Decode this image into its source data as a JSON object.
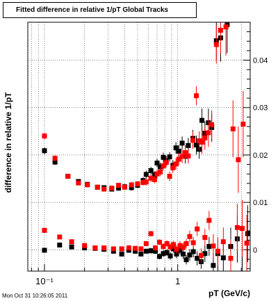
{
  "chart_data": {
    "type": "scatter",
    "title": "Fitted difference in relative 1/pT  Global Tracks",
    "xlabel": "pT (GeV/c)",
    "ylabel": "difference in relative 1/pT",
    "x_scale": "log",
    "xlim": [
      0.075,
      3.5
    ],
    "ylim": [
      -0.0045,
      0.048
    ],
    "x_ticks": [
      {
        "value": 0.1,
        "label": "10⁻¹"
      },
      {
        "value": 1,
        "label": "1"
      }
    ],
    "y_ticks": [
      {
        "value": 0,
        "label": "0"
      },
      {
        "value": 0.01,
        "label": "0.01"
      },
      {
        "value": 0.02,
        "label": "0.02"
      },
      {
        "value": 0.03,
        "label": "0.03"
      },
      {
        "value": 0.04,
        "label": "0.04"
      }
    ],
    "grid": true,
    "colors": {
      "black": "#000000",
      "red": "#ff0000"
    },
    "series": [
      {
        "color": "#000000",
        "marker": "square",
        "points": [
          [
            0.1,
            0.0209,
            0.0007
          ],
          [
            0.12,
            0.0185,
            0.0006
          ],
          [
            0.15,
            0.0155,
            0.0005
          ],
          [
            0.18,
            0.0144,
            0.0005
          ],
          [
            0.21,
            0.0138,
            0.0005
          ],
          [
            0.25,
            0.0132,
            0.0005
          ],
          [
            0.28,
            0.0131,
            0.0005
          ],
          [
            0.32,
            0.0128,
            0.0005
          ],
          [
            0.36,
            0.013,
            0.0005
          ],
          [
            0.4,
            0.0133,
            0.0006
          ],
          [
            0.45,
            0.0131,
            0.0006
          ],
          [
            0.5,
            0.0136,
            0.0006
          ],
          [
            0.55,
            0.0146,
            0.0007
          ],
          [
            0.58,
            0.0159,
            0.0008
          ],
          [
            0.63,
            0.0167,
            0.0008
          ],
          [
            0.67,
            0.0158,
            0.0008
          ],
          [
            0.7,
            0.0183,
            0.0009
          ],
          [
            0.74,
            0.0175,
            0.0009
          ],
          [
            0.78,
            0.0195,
            0.001
          ],
          [
            0.82,
            0.0188,
            0.001
          ],
          [
            0.87,
            0.0196,
            0.001
          ],
          [
            0.92,
            0.0178,
            0.0011
          ],
          [
            0.97,
            0.0215,
            0.0012
          ],
          [
            1.02,
            0.0208,
            0.0013
          ],
          [
            1.08,
            0.0225,
            0.0014
          ],
          [
            1.14,
            0.0197,
            0.0015
          ],
          [
            1.2,
            0.022,
            0.0016
          ],
          [
            1.3,
            0.0235,
            0.0018
          ],
          [
            1.38,
            0.0221,
            0.002
          ],
          [
            1.45,
            0.0212,
            0.002
          ],
          [
            1.52,
            0.0273,
            0.0025
          ],
          [
            1.6,
            0.0246,
            0.0025
          ],
          [
            1.7,
            0.0268,
            0.003
          ],
          [
            1.8,
            0.0258,
            0.003
          ],
          [
            1.95,
            0.0441,
            0.004
          ],
          [
            2.1,
            0.0447,
            0.005
          ],
          [
            2.35,
            0.0475,
            0.006
          ],
          [
            0.1,
            -0.0001,
            0.0004
          ],
          [
            0.13,
            0.001,
            0.0004
          ],
          [
            0.16,
            0.0006,
            0.0004
          ],
          [
            0.2,
            0.0004,
            0.0004
          ],
          [
            0.24,
            0.0003,
            0.0004
          ],
          [
            0.28,
            0.0001,
            0.0004
          ],
          [
            0.33,
            -0.0003,
            0.0004
          ],
          [
            0.38,
            -0.0009,
            0.0004
          ],
          [
            0.43,
            -0.0001,
            0.0005
          ],
          [
            0.48,
            -0.0003,
            0.0005
          ],
          [
            0.53,
            -0.0009,
            0.0005
          ],
          [
            0.58,
            -0.0003,
            0.0005
          ],
          [
            0.63,
            -0.0002,
            0.0006
          ],
          [
            0.68,
            -0.0003,
            0.0006
          ],
          [
            0.73,
            -0.0014,
            0.0006
          ],
          [
            0.78,
            -0.0008,
            0.0007
          ],
          [
            0.83,
            -0.0006,
            0.0007
          ],
          [
            0.88,
            -0.0013,
            0.0008
          ],
          [
            0.93,
            0.0002,
            0.0008
          ],
          [
            0.98,
            -0.0009,
            0.0009
          ],
          [
            1.04,
            -0.0001,
            0.0009
          ],
          [
            1.1,
            -0.0009,
            0.001
          ],
          [
            1.16,
            -0.0021,
            0.001
          ],
          [
            1.23,
            -0.0011,
            0.0012
          ],
          [
            1.31,
            -0.0004,
            0.0012
          ],
          [
            1.4,
            -0.0018,
            0.0015
          ],
          [
            1.5,
            -0.0025,
            0.0015
          ],
          [
            1.6,
            -0.0008,
            0.0018
          ],
          [
            1.72,
            0.0007,
            0.002
          ],
          [
            1.85,
            -0.0033,
            0.0025
          ],
          [
            2.0,
            -0.0008,
            0.003
          ],
          [
            2.2,
            -0.0017,
            0.003
          ],
          [
            2.5,
            0.0007,
            0.004
          ],
          [
            2.8,
            0.0023,
            0.005
          ],
          [
            3.05,
            -0.0048,
            0.006
          ],
          [
            3.35,
            0.0034,
            0.006
          ]
        ]
      },
      {
        "color": "#ff0000",
        "marker": "square",
        "points": [
          [
            0.1,
            0.024,
            0.0007
          ],
          [
            0.12,
            0.0193,
            0.0006
          ],
          [
            0.15,
            0.0155,
            0.0005
          ],
          [
            0.18,
            0.0141,
            0.0005
          ],
          [
            0.21,
            0.0137,
            0.0005
          ],
          [
            0.25,
            0.0132,
            0.0005
          ],
          [
            0.28,
            0.0128,
            0.0005
          ],
          [
            0.32,
            0.013,
            0.0005
          ],
          [
            0.36,
            0.0136,
            0.0005
          ],
          [
            0.4,
            0.0132,
            0.0006
          ],
          [
            0.45,
            0.0137,
            0.0006
          ],
          [
            0.5,
            0.0139,
            0.0006
          ],
          [
            0.55,
            0.0142,
            0.0007
          ],
          [
            0.58,
            0.0143,
            0.0008
          ],
          [
            0.63,
            0.0151,
            0.0008
          ],
          [
            0.67,
            0.0148,
            0.0008
          ],
          [
            0.7,
            0.016,
            0.0009
          ],
          [
            0.74,
            0.0164,
            0.0009
          ],
          [
            0.78,
            0.0177,
            0.001
          ],
          [
            0.82,
            0.0184,
            0.001
          ],
          [
            0.87,
            0.0155,
            0.001
          ],
          [
            0.92,
            0.0173,
            0.0011
          ],
          [
            0.97,
            0.0181,
            0.0012
          ],
          [
            1.02,
            0.0191,
            0.0013
          ],
          [
            1.08,
            0.0197,
            0.0014
          ],
          [
            1.14,
            0.0205,
            0.0015
          ],
          [
            1.2,
            0.0198,
            0.0016
          ],
          [
            1.3,
            0.0231,
            0.0018
          ],
          [
            1.38,
            0.0325,
            0.002
          ],
          [
            1.45,
            0.023,
            0.002
          ],
          [
            1.52,
            0.0227,
            0.0025
          ],
          [
            1.6,
            0.0236,
            0.0025
          ],
          [
            1.7,
            0.0247,
            0.003
          ],
          [
            1.8,
            0.0264,
            0.003
          ],
          [
            1.95,
            0.0433,
            0.004
          ],
          [
            2.1,
            0.0463,
            0.005
          ],
          [
            2.3,
            0.047,
            0.006
          ],
          [
            2.6,
            0.0255,
            0.006
          ],
          [
            2.85,
            0.019,
            0.007
          ],
          [
            3.1,
            0.0265,
            0.007
          ],
          [
            0.1,
            0.0041,
            0.0004
          ],
          [
            0.13,
            0.0027,
            0.0004
          ],
          [
            0.16,
            0.0017,
            0.0004
          ],
          [
            0.2,
            0.0009,
            0.0004
          ],
          [
            0.24,
            0.0004,
            0.0004
          ],
          [
            0.28,
            0.0004,
            0.0004
          ],
          [
            0.33,
            0.0002,
            0.0004
          ],
          [
            0.38,
            0.0002,
            0.0004
          ],
          [
            0.43,
            0.0004,
            0.0005
          ],
          [
            0.48,
            0.0003,
            0.0005
          ],
          [
            0.53,
            0.0002,
            0.0005
          ],
          [
            0.58,
            0.0013,
            0.0005
          ],
          [
            0.63,
            0.0034,
            0.0006
          ],
          [
            0.68,
            0.0004,
            0.0006
          ],
          [
            0.73,
            0.0016,
            0.0006
          ],
          [
            0.78,
            0.0007,
            0.0007
          ],
          [
            0.83,
            0.0013,
            0.0007
          ],
          [
            0.88,
            0.0006,
            0.0008
          ],
          [
            0.93,
            0.0011,
            0.0008
          ],
          [
            0.98,
            0.0001,
            0.0009
          ],
          [
            1.04,
            0.0009,
            0.0009
          ],
          [
            1.1,
            0.0005,
            0.001
          ],
          [
            1.16,
            0.0013,
            0.001
          ],
          [
            1.23,
            0.0028,
            0.0012
          ],
          [
            1.31,
            0.0015,
            0.0012
          ],
          [
            1.4,
            0.0044,
            0.0015
          ],
          [
            1.5,
            -0.0012,
            0.0015
          ],
          [
            1.6,
            0.0026,
            0.0018
          ],
          [
            1.72,
            0.0062,
            0.002
          ],
          [
            1.85,
            0.0008,
            0.0025
          ],
          [
            2.0,
            -0.0003,
            0.003
          ],
          [
            2.2,
            0.0017,
            0.003
          ],
          [
            2.5,
            -0.0018,
            0.004
          ],
          [
            2.8,
            0.0047,
            0.005
          ],
          [
            3.05,
            0.0045,
            0.006
          ],
          [
            3.3,
            0.0014,
            0.006
          ]
        ]
      }
    ]
  },
  "timestamp": "Mon Oct 31 10:26:05 2011"
}
